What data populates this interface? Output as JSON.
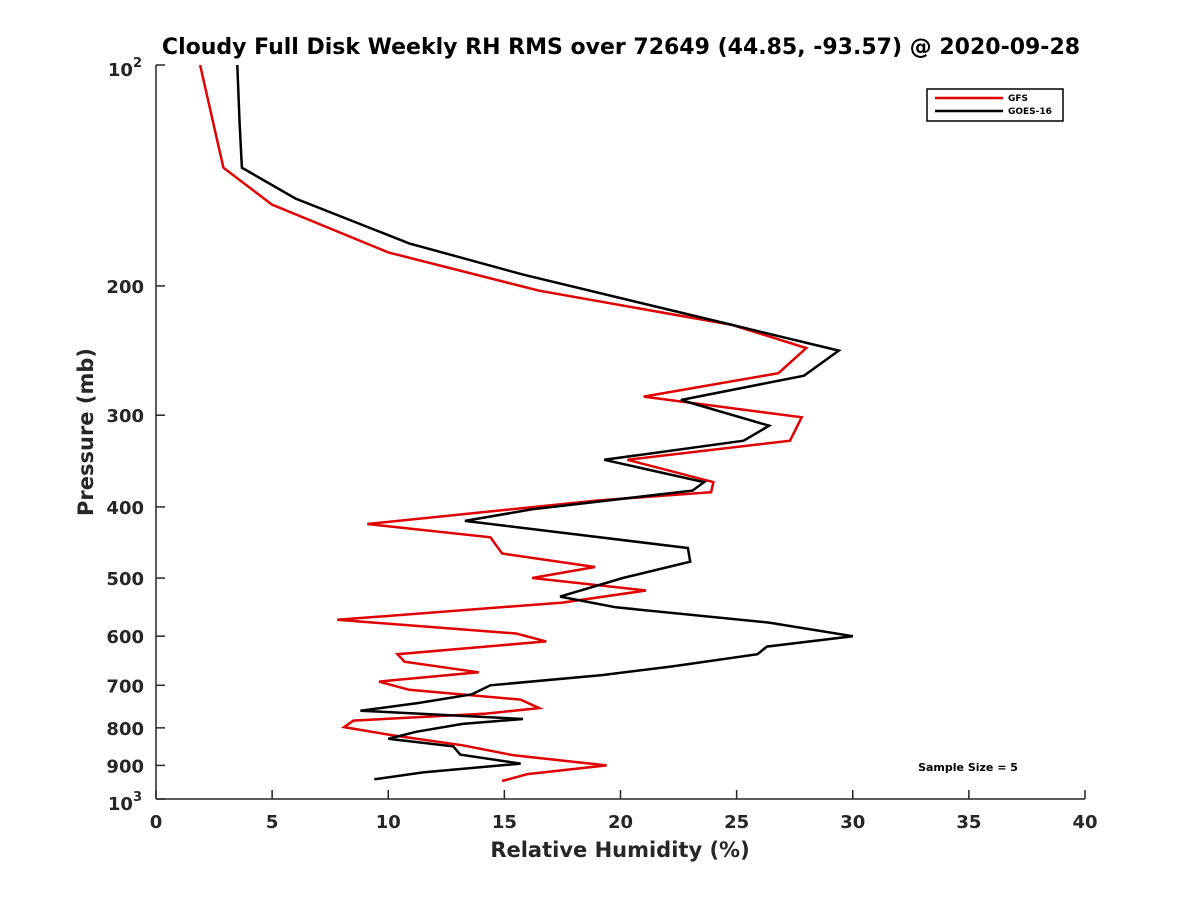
{
  "chart_data": {
    "type": "line",
    "title": "Cloudy Full Disk Weekly RH RMS over 72649 (44.85, -93.57) @ 2020-09-28",
    "xlabel": "Relative Humidity (%)",
    "ylabel": "Pressure (mb)",
    "xlim": [
      0,
      40
    ],
    "ylim": [
      100,
      1000
    ],
    "y_scale": "log",
    "y_reversed": true,
    "grid": false,
    "legend_position": "top-right",
    "x_ticks": [
      "0",
      "5",
      "10",
      "15",
      "20",
      "25",
      "30",
      "35",
      "40"
    ],
    "y_ticks": [
      {
        "value": 100,
        "base": "10",
        "exp": "2"
      },
      {
        "value": 200,
        "label": "200"
      },
      {
        "value": 300,
        "label": "300"
      },
      {
        "value": 400,
        "label": "400"
      },
      {
        "value": 500,
        "label": "500"
      },
      {
        "value": 600,
        "label": "600"
      },
      {
        "value": 700,
        "label": "700"
      },
      {
        "value": 800,
        "label": "800"
      },
      {
        "value": 900,
        "label": "900"
      },
      {
        "value": 1000,
        "base": "10",
        "exp": "3"
      }
    ],
    "series": [
      {
        "name": "GFS",
        "color": "#e00000",
        "points": [
          [
            1.9,
            100
          ],
          [
            2.9,
            138
          ],
          [
            5.0,
            155
          ],
          [
            10.0,
            180
          ],
          [
            16.5,
            203
          ],
          [
            24.8,
            226
          ],
          [
            28.0,
            243
          ],
          [
            26.8,
            263
          ],
          [
            21.0,
            283
          ],
          [
            27.8,
            302
          ],
          [
            27.3,
            325
          ],
          [
            20.3,
            345
          ],
          [
            24.0,
            370
          ],
          [
            23.9,
            382
          ],
          [
            19.0,
            392
          ],
          [
            9.1,
            422
          ],
          [
            14.4,
            440
          ],
          [
            14.9,
            463
          ],
          [
            18.9,
            483
          ],
          [
            16.2,
            500
          ],
          [
            21.1,
            520
          ],
          [
            17.5,
            540
          ],
          [
            7.8,
            570
          ],
          [
            15.5,
            595
          ],
          [
            16.8,
            610
          ],
          [
            10.4,
            635
          ],
          [
            10.7,
            650
          ],
          [
            13.9,
            672
          ],
          [
            9.6,
            692
          ],
          [
            10.9,
            710
          ],
          [
            15.7,
            732
          ],
          [
            16.5,
            752
          ],
          [
            14.2,
            765
          ],
          [
            8.5,
            782
          ],
          [
            8.1,
            798
          ],
          [
            10.1,
            818
          ],
          [
            13.2,
            845
          ],
          [
            15.4,
            872
          ],
          [
            19.4,
            900
          ],
          [
            16.0,
            925
          ],
          [
            14.9,
            945
          ]
        ]
      },
      {
        "name": "GOES-16",
        "color": "#000000",
        "points": [
          [
            3.5,
            100
          ],
          [
            3.6,
            120
          ],
          [
            3.7,
            138
          ],
          [
            6.0,
            152
          ],
          [
            10.9,
            175
          ],
          [
            15.8,
            193
          ],
          [
            24.8,
            226
          ],
          [
            29.4,
            245
          ],
          [
            27.9,
            265
          ],
          [
            22.6,
            286
          ],
          [
            26.4,
            310
          ],
          [
            25.3,
            325
          ],
          [
            19.3,
            345
          ],
          [
            23.6,
            370
          ],
          [
            23.1,
            380
          ],
          [
            16.2,
            403
          ],
          [
            13.3,
            418
          ],
          [
            22.9,
            455
          ],
          [
            23.0,
            475
          ],
          [
            20.1,
            500
          ],
          [
            17.4,
            530
          ],
          [
            19.8,
            548
          ],
          [
            26.4,
            575
          ],
          [
            30.0,
            600
          ],
          [
            26.3,
            620
          ],
          [
            25.9,
            635
          ],
          [
            22.2,
            660
          ],
          [
            19.2,
            678
          ],
          [
            14.4,
            700
          ],
          [
            13.6,
            720
          ],
          [
            11.3,
            740
          ],
          [
            8.8,
            758
          ],
          [
            15.8,
            778
          ],
          [
            13.2,
            790
          ],
          [
            11.2,
            810
          ],
          [
            10.0,
            828
          ],
          [
            12.8,
            848
          ],
          [
            13.1,
            870
          ],
          [
            15.7,
            895
          ],
          [
            11.5,
            920
          ],
          [
            9.4,
            940
          ]
        ]
      }
    ],
    "annotation": "Sample Size = 5"
  }
}
